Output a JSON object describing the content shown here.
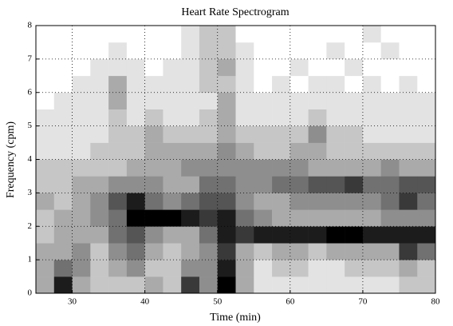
{
  "chart_data": {
    "type": "heatmap",
    "title": "Heart Rate Spectrogram",
    "xlabel": "Time (min)",
    "ylabel": "Frequency (cpm)",
    "x": [
      25,
      27.5,
      30,
      32.5,
      35,
      37.5,
      40,
      42.5,
      45,
      47.5,
      50,
      52.5,
      55,
      57.5,
      60,
      62.5,
      65,
      67.5,
      70,
      72.5,
      75,
      77.5
    ],
    "y": [
      0,
      0.5,
      1,
      1.5,
      2,
      2.5,
      3,
      3.5,
      4,
      4.5,
      5,
      5.5,
      6,
      6.5,
      7,
      7.5
    ],
    "z": [
      [
        3,
        8,
        3,
        2,
        2,
        2,
        3,
        2,
        7,
        4,
        9,
        3,
        1,
        1,
        1,
        1,
        1,
        1,
        1,
        1,
        2,
        2
      ],
      [
        3,
        5,
        4,
        2,
        3,
        4,
        2,
        2,
        4,
        4,
        8,
        3,
        1,
        2,
        2,
        1,
        1,
        2,
        2,
        2,
        3,
        2
      ],
      [
        3,
        3,
        4,
        2,
        4,
        5,
        3,
        2,
        3,
        4,
        7,
        3,
        2,
        3,
        3,
        2,
        3,
        3,
        3,
        3,
        7,
        5
      ],
      [
        2,
        3,
        3,
        3,
        5,
        6,
        4,
        3,
        3,
        5,
        8,
        7,
        8,
        8,
        8,
        8,
        9,
        9,
        8,
        8,
        8,
        8
      ],
      [
        2,
        3,
        3,
        4,
        5,
        9,
        9,
        9,
        8,
        7,
        8,
        5,
        4,
        3,
        3,
        3,
        3,
        3,
        3,
        4,
        4,
        4
      ],
      [
        3,
        2,
        3,
        4,
        6,
        8,
        5,
        4,
        5,
        6,
        6,
        4,
        3,
        3,
        4,
        4,
        4,
        4,
        4,
        5,
        7,
        5
      ],
      [
        2,
        2,
        3,
        3,
        4,
        4,
        4,
        3,
        3,
        5,
        5,
        4,
        4,
        5,
        5,
        6,
        6,
        7,
        5,
        5,
        6,
        6
      ],
      [
        2,
        2,
        2,
        2,
        2,
        3,
        3,
        3,
        4,
        4,
        4,
        4,
        4,
        4,
        4,
        3,
        3,
        3,
        3,
        4,
        3,
        3
      ],
      [
        1,
        1,
        1,
        2,
        2,
        2,
        3,
        3,
        3,
        3,
        4,
        3,
        2,
        2,
        3,
        3,
        2,
        2,
        2,
        2,
        2,
        2
      ],
      [
        1,
        1,
        1,
        1,
        2,
        2,
        3,
        2,
        2,
        2,
        3,
        2,
        2,
        2,
        2,
        4,
        2,
        2,
        1,
        1,
        1,
        1
      ],
      [
        1,
        1,
        1,
        1,
        2,
        1,
        2,
        1,
        1,
        2,
        3,
        1,
        1,
        1,
        1,
        2,
        1,
        1,
        1,
        1,
        1,
        1
      ],
      [
        0,
        1,
        1,
        1,
        3,
        1,
        1,
        1,
        1,
        1,
        3,
        1,
        1,
        1,
        1,
        1,
        1,
        1,
        1,
        1,
        1,
        1
      ],
      [
        0,
        0,
        1,
        1,
        3,
        1,
        1,
        1,
        1,
        2,
        2,
        1,
        0,
        1,
        0,
        1,
        1,
        0,
        1,
        0,
        1,
        0
      ],
      [
        0,
        0,
        0,
        1,
        1,
        1,
        0,
        1,
        1,
        2,
        3,
        1,
        0,
        0,
        1,
        0,
        0,
        1,
        0,
        0,
        0,
        0
      ],
      [
        0,
        0,
        0,
        0,
        1,
        0,
        0,
        0,
        1,
        2,
        2,
        1,
        0,
        0,
        0,
        0,
        1,
        0,
        0,
        1,
        0,
        0
      ],
      [
        0,
        0,
        0,
        0,
        0,
        0,
        0,
        0,
        1,
        2,
        2,
        0,
        0,
        0,
        0,
        0,
        0,
        0,
        1,
        0,
        0,
        0
      ]
    ],
    "zlim": [
      0,
      9
    ],
    "xlim": [
      25,
      80
    ],
    "xticks": [
      30,
      40,
      50,
      60,
      70,
      80
    ],
    "ylim": [
      0,
      8
    ],
    "yticks": [
      0,
      1,
      2,
      3,
      4,
      5,
      6,
      7,
      8
    ],
    "grid": true
  }
}
